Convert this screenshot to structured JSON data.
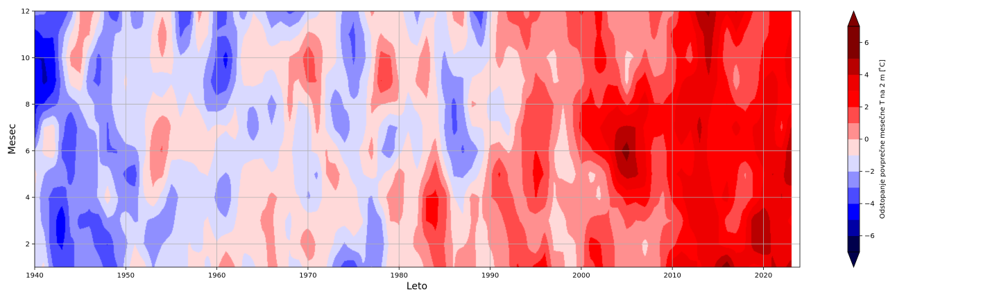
{
  "chart_data": {
    "type": "heatmap",
    "subtype": "filled-contour",
    "title": "",
    "xlabel": "Leto",
    "ylabel": "Mesec",
    "colorbar_label": "Odstopanje povprečne mesečne T na 2 m [$^\\circ$C]",
    "colorbar_label_display": "Odstopanje povprečne mesečne T na 2 m [ ̊C]",
    "xlim": [
      1940,
      2024
    ],
    "ylim": [
      1,
      12
    ],
    "xticks": [
      1940,
      1950,
      1960,
      1970,
      1980,
      1990,
      2000,
      2010,
      2020
    ],
    "yticks": [
      2,
      4,
      6,
      8,
      10,
      12
    ],
    "grid": true,
    "colormap": "seismic",
    "colorbar_extend": "both",
    "levels": [
      -7,
      -6,
      -5,
      -4,
      -3,
      -2,
      -1,
      0,
      1,
      2,
      3,
      4,
      5,
      6,
      7
    ],
    "colorbar_ticks": [
      -6,
      -4,
      -2,
      0,
      2,
      4,
      6
    ],
    "colorbar_tick_labels": [
      "−6",
      "−4",
      "−2",
      "0",
      "2",
      "4",
      "6"
    ],
    "level_colors": [
      "#00004c",
      "#0000a5",
      "#0000ff",
      "#4b4bff",
      "#8f8fff",
      "#d9d9ff",
      "#ffd9d9",
      "#ff8f8f",
      "#ff4b4b",
      "#ff0000",
      "#ee0000",
      "#b80000",
      "#800000",
      "#800000"
    ],
    "under_color": "#00004c",
    "over_color": "#800000",
    "colorbar_position": "right",
    "x_values_description": "years 1940-2023",
    "y_values_description": "months 1-12",
    "trend": "predominantly negative anomalies (blue) 1940-1987, transitioning to predominantly positive anomalies (red) after 1988, strongest positive anomalies after 2000",
    "period_anomalies": [
      {
        "period": "1940-1949",
        "mean_anomaly": -1.5
      },
      {
        "period": "1950-1959",
        "mean_anomaly": -1.0
      },
      {
        "period": "1960-1969",
        "mean_anomaly": -0.9
      },
      {
        "period": "1970-1979",
        "mean_anomaly": -0.9
      },
      {
        "period": "1980-1989",
        "mean_anomaly": -0.7
      },
      {
        "period": "1990-1999",
        "mean_anomaly": 0.2
      },
      {
        "period": "2000-2009",
        "mean_anomaly": 1.2
      },
      {
        "period": "2010-2019",
        "mean_anomaly": 1.8
      },
      {
        "period": "2020-2023",
        "mean_anomaly": 2.4
      }
    ]
  }
}
